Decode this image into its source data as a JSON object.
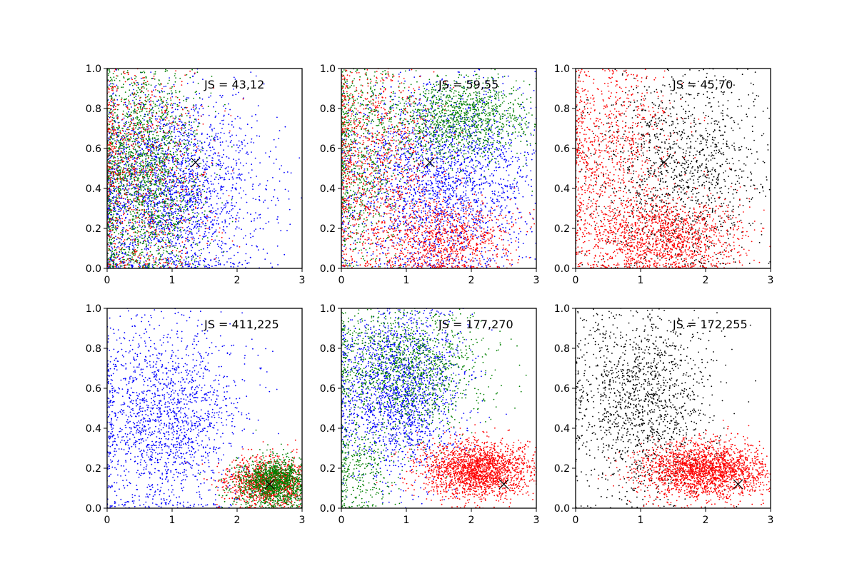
{
  "figure": {
    "background": "#ffffff",
    "colors": {
      "blue": "#0000ff",
      "green": "#008000",
      "red": "#ff0000",
      "black": "#000000"
    }
  },
  "chart_data": [
    {
      "type": "scatter",
      "title": "",
      "xlabel": "",
      "ylabel": "",
      "xlim": [
        0,
        3
      ],
      "ylim": [
        0,
        1
      ],
      "xticks": [
        "0",
        "1",
        "2",
        "3"
      ],
      "yticks": [
        "0.0",
        "0.2",
        "0.4",
        "0.6",
        "0.8",
        "1.0"
      ],
      "annotation": "JS = 43,12",
      "marker": {
        "x": 1.36,
        "y": 0.53,
        "symbol": "x"
      },
      "series": [
        {
          "color": "#0000ff",
          "n": 2600,
          "clusters": [
            {
              "mx": 0.95,
              "sx": 0.7,
              "my": 0.4,
              "sy": 0.25,
              "w": 1
            }
          ]
        },
        {
          "color": "#008000",
          "n": 2100,
          "clusters": [
            {
              "mx": 0.55,
              "sx": 0.45,
              "my": 0.5,
              "sy": 0.3,
              "w": 1
            }
          ]
        },
        {
          "color": "#ff0000",
          "n": 900,
          "clusters": [
            {
              "mx": 0.55,
              "sx": 0.55,
              "my": 0.5,
              "sy": 0.3,
              "w": 1
            }
          ]
        }
      ],
      "grid": false
    },
    {
      "type": "scatter",
      "title": "",
      "xlabel": "",
      "ylabel": "",
      "xlim": [
        0,
        3
      ],
      "ylim": [
        0,
        1
      ],
      "xticks": [
        "0",
        "1",
        "2",
        "3"
      ],
      "yticks": [
        "0.0",
        "0.2",
        "0.4",
        "0.6",
        "0.8",
        "1.0"
      ],
      "annotation": "JS = 59,55",
      "marker": {
        "x": 1.36,
        "y": 0.53,
        "symbol": "x"
      },
      "series": [
        {
          "color": "#0000ff",
          "n": 2500,
          "clusters": [
            {
              "mx": 1.5,
              "sx": 0.75,
              "my": 0.45,
              "sy": 0.25,
              "w": 1
            }
          ]
        },
        {
          "color": "#008000",
          "n": 2100,
          "clusters": [
            {
              "mx": 1.8,
              "sx": 0.55,
              "my": 0.75,
              "sy": 0.1,
              "w": 0.6
            },
            {
              "mx": 0.3,
              "sx": 0.4,
              "my": 0.6,
              "sy": 0.3,
              "w": 0.4
            }
          ]
        },
        {
          "color": "#ff0000",
          "n": 2000,
          "clusters": [
            {
              "mx": 1.6,
              "sx": 0.55,
              "my": 0.15,
              "sy": 0.1,
              "w": 0.5
            },
            {
              "mx": 0.5,
              "sx": 0.5,
              "my": 0.55,
              "sy": 0.3,
              "w": 0.5
            }
          ]
        }
      ],
      "grid": false
    },
    {
      "type": "scatter",
      "title": "",
      "xlabel": "",
      "ylabel": "",
      "xlim": [
        0,
        3
      ],
      "ylim": [
        0,
        1
      ],
      "xticks": [
        "0",
        "1",
        "2",
        "3"
      ],
      "yticks": [
        "0.0",
        "0.2",
        "0.4",
        "0.6",
        "0.8",
        "1.0"
      ],
      "annotation": "JS = 45,70",
      "marker": {
        "x": 1.36,
        "y": 0.53,
        "symbol": "x"
      },
      "series": [
        {
          "color": "#000000",
          "n": 1500,
          "clusters": [
            {
              "mx": 1.6,
              "sx": 0.7,
              "my": 0.5,
              "sy": 0.25,
              "w": 1
            }
          ]
        },
        {
          "color": "#ff0000",
          "n": 2400,
          "clusters": [
            {
              "mx": 1.4,
              "sx": 0.6,
              "my": 0.15,
              "sy": 0.1,
              "w": 0.55
            },
            {
              "mx": 0.5,
              "sx": 0.5,
              "my": 0.55,
              "sy": 0.3,
              "w": 0.45
            }
          ]
        }
      ],
      "grid": false
    },
    {
      "type": "scatter",
      "title": "",
      "xlabel": "",
      "ylabel": "",
      "xlim": [
        0,
        3
      ],
      "ylim": [
        0,
        1
      ],
      "xticks": [
        "0",
        "1",
        "2",
        "3"
      ],
      "yticks": [
        "0.0",
        "0.2",
        "0.4",
        "0.6",
        "0.8",
        "1.0"
      ],
      "annotation": "JS = 411,225",
      "marker": {
        "x": 2.5,
        "y": 0.12,
        "symbol": "x"
      },
      "series": [
        {
          "color": "#0000ff",
          "n": 1800,
          "clusters": [
            {
              "mx": 0.9,
              "sx": 0.6,
              "my": 0.45,
              "sy": 0.25,
              "w": 1
            }
          ]
        },
        {
          "color": "#ff0000",
          "n": 1200,
          "clusters": [
            {
              "mx": 2.5,
              "sx": 0.35,
              "my": 0.13,
              "sy": 0.06,
              "w": 1
            }
          ]
        },
        {
          "color": "#008000",
          "n": 1500,
          "clusters": [
            {
              "mx": 2.6,
              "sx": 0.3,
              "my": 0.13,
              "sy": 0.06,
              "w": 1
            }
          ]
        }
      ],
      "grid": false
    },
    {
      "type": "scatter",
      "title": "",
      "xlabel": "",
      "ylabel": "",
      "xlim": [
        0,
        3
      ],
      "ylim": [
        0,
        1
      ],
      "xticks": [
        "0",
        "1",
        "2",
        "3"
      ],
      "yticks": [
        "0.0",
        "0.2",
        "0.4",
        "0.6",
        "0.8",
        "1.0"
      ],
      "annotation": "JS = 177,270",
      "marker": {
        "x": 2.5,
        "y": 0.12,
        "symbol": "x"
      },
      "series": [
        {
          "color": "#0000ff",
          "n": 2000,
          "clusters": [
            {
              "mx": 0.9,
              "sx": 0.5,
              "my": 0.6,
              "sy": 0.22,
              "w": 1
            }
          ]
        },
        {
          "color": "#008000",
          "n": 1700,
          "clusters": [
            {
              "mx": 1.0,
              "sx": 0.6,
              "my": 0.7,
              "sy": 0.18,
              "w": 0.8
            },
            {
              "mx": 0.3,
              "sx": 0.3,
              "my": 0.2,
              "sy": 0.12,
              "w": 0.2
            }
          ]
        },
        {
          "color": "#ff0000",
          "n": 2000,
          "clusters": [
            {
              "mx": 2.1,
              "sx": 0.45,
              "my": 0.19,
              "sy": 0.07,
              "w": 1
            }
          ]
        }
      ],
      "grid": false
    },
    {
      "type": "scatter",
      "title": "",
      "xlabel": "",
      "ylabel": "",
      "xlim": [
        0,
        3
      ],
      "ylim": [
        0,
        1
      ],
      "xticks": [
        "0",
        "1",
        "2",
        "3"
      ],
      "yticks": [
        "0.0",
        "0.2",
        "0.4",
        "0.6",
        "0.8",
        "1.0"
      ],
      "annotation": "JS = 172,255",
      "marker": {
        "x": 2.5,
        "y": 0.12,
        "symbol": "x"
      },
      "series": [
        {
          "color": "#000000",
          "n": 1600,
          "clusters": [
            {
              "mx": 1.0,
              "sx": 0.55,
              "my": 0.55,
              "sy": 0.25,
              "w": 1
            }
          ]
        },
        {
          "color": "#ff0000",
          "n": 2200,
          "clusters": [
            {
              "mx": 2.0,
              "sx": 0.5,
              "my": 0.19,
              "sy": 0.07,
              "w": 1
            }
          ]
        }
      ],
      "grid": false
    }
  ]
}
